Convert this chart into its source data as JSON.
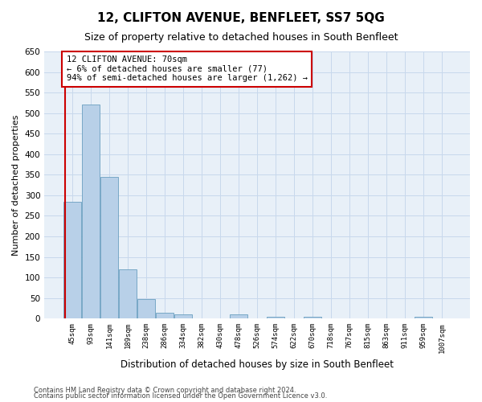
{
  "title": "12, CLIFTON AVENUE, BENFLEET, SS7 5QG",
  "subtitle": "Size of property relative to detached houses in South Benfleet",
  "xlabel": "Distribution of detached houses by size in South Benfleet",
  "ylabel": "Number of detached properties",
  "footnote1": "Contains HM Land Registry data © Crown copyright and database right 2024.",
  "footnote2": "Contains public sector information licensed under the Open Government Licence v3.0.",
  "bins": [
    "45sqm",
    "93sqm",
    "141sqm",
    "189sqm",
    "238sqm",
    "286sqm",
    "334sqm",
    "382sqm",
    "430sqm",
    "478sqm",
    "526sqm",
    "574sqm",
    "622sqm",
    "670sqm",
    "718sqm",
    "767sqm",
    "815sqm",
    "863sqm",
    "911sqm",
    "959sqm",
    "1007sqm"
  ],
  "values": [
    285,
    520,
    345,
    120,
    48,
    15,
    10,
    0,
    0,
    10,
    0,
    5,
    0,
    5,
    0,
    0,
    0,
    0,
    0,
    5,
    0
  ],
  "bar_color": "#b8d0e8",
  "bar_edge_color": "#6a9fc0",
  "annotation_text": "12 CLIFTON AVENUE: 70sqm\n← 6% of detached houses are smaller (77)\n94% of semi-detached houses are larger (1,262) →",
  "annotation_box_color": "#ffffff",
  "annotation_box_edge_color": "#cc0000",
  "vline_color": "#cc0000",
  "vline_xindex": -0.38,
  "ylim": [
    0,
    650
  ],
  "yticks": [
    0,
    50,
    100,
    150,
    200,
    250,
    300,
    350,
    400,
    450,
    500,
    550,
    600,
    650
  ],
  "grid_color": "#c8d8ec",
  "plot_bg_color": "#e8f0f8",
  "background_color": "#ffffff",
  "title_fontsize": 11,
  "subtitle_fontsize": 9,
  "annotation_fontsize": 7.5
}
